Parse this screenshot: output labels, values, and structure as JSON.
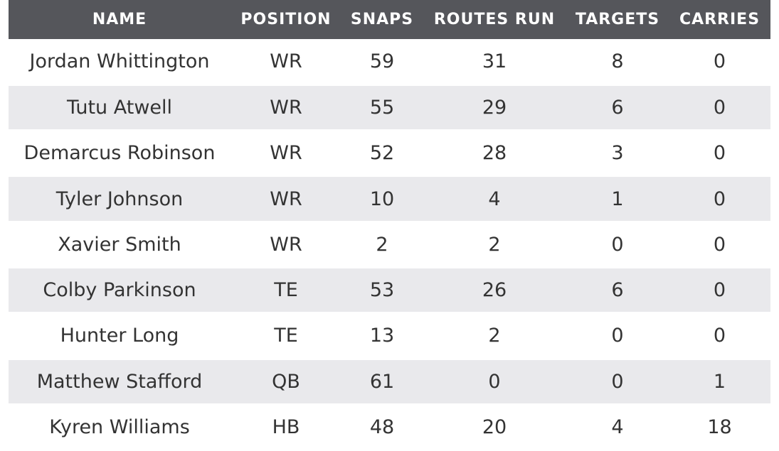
{
  "columns": [
    "NAME",
    "POSITION",
    "SNAPS",
    "ROUTES RUN",
    "TARGETS",
    "CARRIES"
  ],
  "rows": [
    [
      "Jordan Whittington",
      "WR",
      "59",
      "31",
      "8",
      "0"
    ],
    [
      "Tutu Atwell",
      "WR",
      "55",
      "29",
      "6",
      "0"
    ],
    [
      "Demarcus Robinson",
      "WR",
      "52",
      "28",
      "3",
      "0"
    ],
    [
      "Tyler Johnson",
      "WR",
      "10",
      "4",
      "1",
      "0"
    ],
    [
      "Xavier Smith",
      "WR",
      "2",
      "2",
      "0",
      "0"
    ],
    [
      "Colby Parkinson",
      "TE",
      "53",
      "26",
      "6",
      "0"
    ],
    [
      "Hunter Long",
      "TE",
      "13",
      "2",
      "0",
      "0"
    ],
    [
      "Matthew Stafford",
      "QB",
      "61",
      "0",
      "0",
      "1"
    ],
    [
      "Kyren Williams",
      "HB",
      "48",
      "20",
      "4",
      "18"
    ]
  ],
  "colors": {
    "header_bg": "#55565b",
    "header_text": "#ffffff",
    "row_alt_bg": "#e9e9ec",
    "cell_text": "#333333"
  }
}
